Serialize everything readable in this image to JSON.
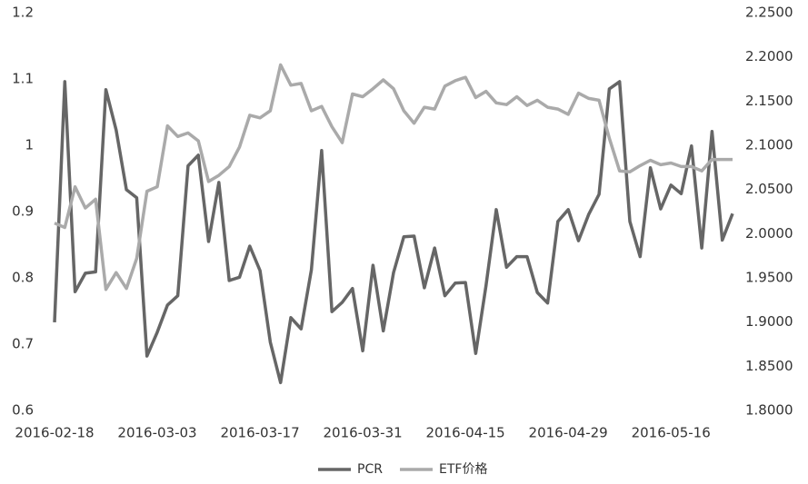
{
  "chart_data": {
    "type": "line",
    "categories": [
      "2016-02-18",
      null,
      null,
      null,
      null,
      null,
      null,
      null,
      null,
      null,
      "2016-03-03",
      null,
      null,
      null,
      null,
      null,
      null,
      null,
      null,
      null,
      "2016-03-17",
      null,
      null,
      null,
      null,
      null,
      null,
      null,
      null,
      null,
      "2016-03-31",
      null,
      null,
      null,
      null,
      null,
      null,
      null,
      null,
      null,
      "2016-04-15",
      null,
      null,
      null,
      null,
      null,
      null,
      null,
      null,
      null,
      "2016-04-29",
      null,
      null,
      null,
      null,
      null,
      null,
      null,
      null,
      null,
      "2016-05-16",
      null,
      null,
      null,
      null,
      null,
      null
    ],
    "series": [
      {
        "name": "PCR",
        "color": "#666666",
        "values": [
          0.733,
          1.096,
          0.779,
          0.807,
          0.809,
          1.084,
          1.023,
          0.933,
          0.921,
          0.682,
          0.718,
          0.759,
          0.773,
          0.969,
          0.985,
          0.855,
          0.944,
          0.796,
          0.801,
          0.848,
          0.811,
          0.703,
          0.642,
          0.74,
          0.723,
          0.812,
          0.992,
          0.749,
          0.763,
          0.784,
          0.69,
          0.819,
          0.72,
          0.808,
          0.862,
          0.863,
          0.785,
          0.845,
          0.773,
          0.792,
          0.793,
          0.686,
          0.788,
          0.903,
          0.816,
          0.832,
          0.832,
          0.778,
          0.762,
          0.885,
          0.903,
          0.856,
          0.896,
          0.926,
          1.085,
          1.096,
          0.885,
          0.832,
          0.966,
          0.904,
          0.94,
          0.927,
          0.999,
          0.845,
          1.021,
          0.857,
          0.897
        ]
      },
      {
        "name": "ETF价格",
        "color": "#aaaaaa",
        "axis": "y2",
        "values": [
          2.012,
          2.007,
          2.053,
          2.029,
          2.039,
          1.937,
          1.956,
          1.938,
          1.972,
          2.048,
          2.053,
          2.122,
          2.11,
          2.114,
          2.105,
          2.059,
          2.066,
          2.076,
          2.098,
          2.134,
          2.131,
          2.139,
          2.191,
          2.168,
          2.17,
          2.139,
          2.144,
          2.121,
          2.103,
          2.158,
          2.155,
          2.164,
          2.174,
          2.164,
          2.139,
          2.125,
          2.143,
          2.141,
          2.167,
          2.173,
          2.177,
          2.154,
          2.161,
          2.148,
          2.146,
          2.155,
          2.145,
          2.151,
          2.143,
          2.141,
          2.135,
          2.159,
          2.153,
          2.151,
          2.108,
          2.071,
          2.07,
          2.077,
          2.083,
          2.078,
          2.08,
          2.076,
          2.076,
          2.071,
          2.084,
          2.084,
          2.084
        ]
      }
    ],
    "ylim": [
      0.6,
      1.2
    ],
    "yticks": [
      0.6,
      0.7,
      0.8,
      0.9,
      1,
      1.1,
      1.2
    ],
    "y2lim": [
      1.8,
      2.25
    ],
    "y2ticks": [
      {
        "value": 1.8,
        "label": "1.8000"
      },
      {
        "value": 1.85,
        "label": "1.8500"
      },
      {
        "value": 1.9,
        "label": "1.9000"
      },
      {
        "value": 1.95,
        "label": "1.9500"
      },
      {
        "value": 2.0,
        "label": "2.0000"
      },
      {
        "value": 2.05,
        "label": "2.0500"
      },
      {
        "value": 2.1,
        "label": "2.1000"
      },
      {
        "value": 2.15,
        "label": "2.1500"
      },
      {
        "value": 2.2,
        "label": "2.2000"
      },
      {
        "value": 2.25,
        "label": "2.2500"
      }
    ],
    "grid": false,
    "legend": "bottom"
  }
}
